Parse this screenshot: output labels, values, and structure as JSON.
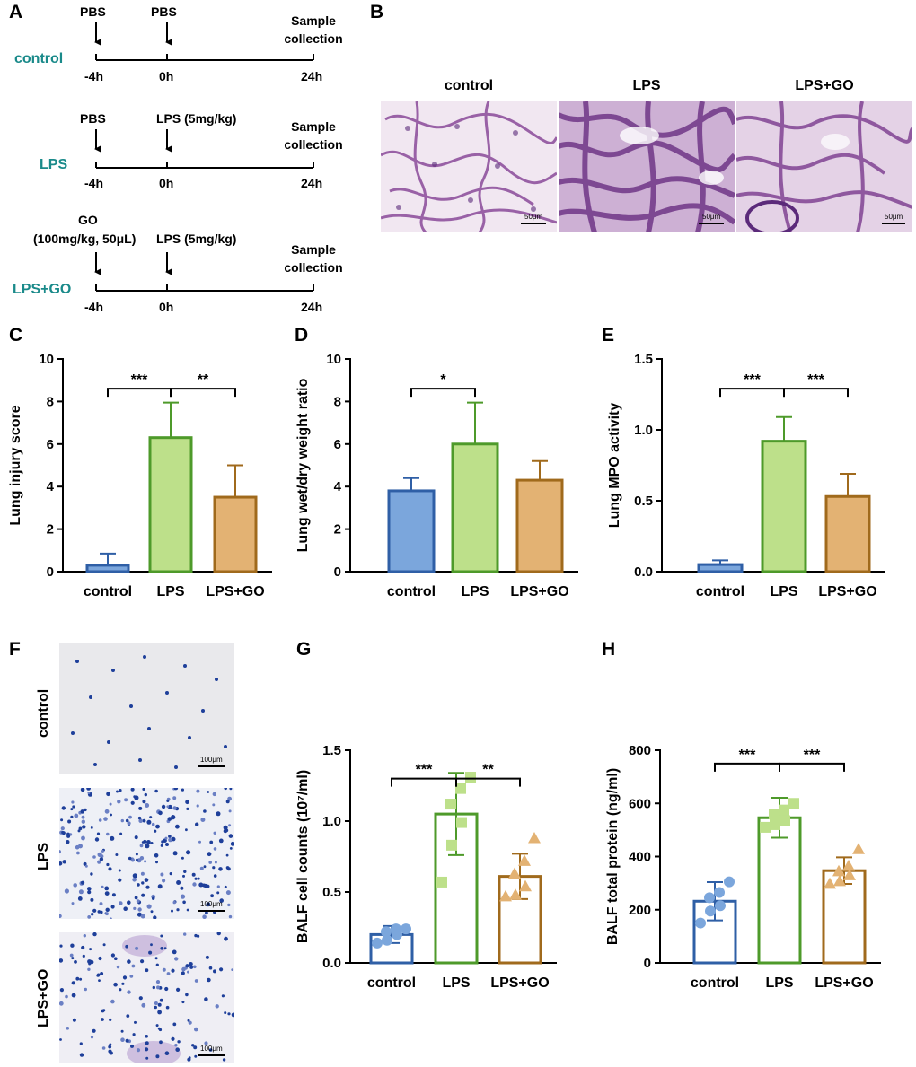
{
  "panel_letters": [
    "A",
    "B",
    "C",
    "D",
    "E",
    "F",
    "G",
    "H"
  ],
  "panelA": {
    "groups": [
      {
        "name": "control",
        "pre": "PBS",
        "treat": "PBS",
        "end_line1": "Sample",
        "end_line2": "collection"
      },
      {
        "name": "LPS",
        "pre": "PBS",
        "treat": "LPS (5mg/kg)",
        "end_line1": "Sample",
        "end_line2": "collection"
      },
      {
        "name": "LPS+GO",
        "pre_line1": "GO",
        "pre_line2": "(100mg/kg, 50μL)",
        "treat": "LPS (5mg/kg)",
        "end_line1": "Sample",
        "end_line2": "collection"
      }
    ],
    "ticks": [
      "-4h",
      "0h",
      "24h"
    ]
  },
  "panelB": {
    "labels": [
      "control",
      "LPS",
      "LPS+GO"
    ],
    "scalebar": "50μm"
  },
  "panelF": {
    "labels": [
      "control",
      "LPS",
      "LPS+GO"
    ],
    "scalebar": "100μm"
  },
  "colors": {
    "control_edge": "#2f5fa6",
    "control_fill": "#7ba6dc",
    "lps_edge": "#4e9a2a",
    "lps_fill": "#bde08a",
    "go_edge": "#a06a1c",
    "go_fill": "#e3b273"
  },
  "chart_data": [
    {
      "id": "C",
      "type": "bar",
      "categories": [
        "control",
        "LPS",
        "LPS+GO"
      ],
      "values": [
        0.3,
        6.3,
        3.5
      ],
      "errors": [
        0.55,
        1.65,
        1.5
      ],
      "ylabel": "Lung injury score",
      "ylim": [
        0,
        10
      ],
      "yticks": [
        "0",
        "2",
        "4",
        "6",
        "8",
        "10"
      ],
      "ytick_values": [
        0,
        2,
        4,
        6,
        8,
        10
      ],
      "sig": [
        {
          "from": 0,
          "to": 1,
          "label": "***",
          "y": 8.6
        },
        {
          "from": 1,
          "to": 2,
          "label": "**",
          "y": 8.6
        }
      ]
    },
    {
      "id": "D",
      "type": "bar",
      "categories": [
        "control",
        "LPS",
        "LPS+GO"
      ],
      "values": [
        3.8,
        6.0,
        4.3
      ],
      "errors": [
        0.6,
        1.95,
        0.9
      ],
      "ylabel": "Lung wet/dry weight ratio",
      "ylim": [
        0,
        10
      ],
      "yticks": [
        "0",
        "2",
        "4",
        "6",
        "8",
        "10"
      ],
      "ytick_values": [
        0,
        2,
        4,
        6,
        8,
        10
      ],
      "sig": [
        {
          "from": 0,
          "to": 1,
          "label": "*",
          "y": 8.6
        }
      ]
    },
    {
      "id": "E",
      "type": "bar",
      "categories": [
        "control",
        "LPS",
        "LPS+GO"
      ],
      "values": [
        0.05,
        0.92,
        0.53
      ],
      "errors": [
        0.03,
        0.17,
        0.16
      ],
      "ylabel": "Lung MPO activity",
      "ylim": [
        0,
        1.5
      ],
      "yticks": [
        "0.0",
        "0.5",
        "1.0",
        "1.5"
      ],
      "ytick_values": [
        0,
        0.5,
        1.0,
        1.5
      ],
      "sig": [
        {
          "from": 0,
          "to": 1,
          "label": "***",
          "y": 1.29
        },
        {
          "from": 1,
          "to": 2,
          "label": "***",
          "y": 1.29
        }
      ]
    },
    {
      "id": "G",
      "type": "bar",
      "categories": [
        "control",
        "LPS",
        "LPS+GO"
      ],
      "values": [
        0.2,
        1.05,
        0.61
      ],
      "errors": [
        0.06,
        0.29,
        0.16
      ],
      "points": [
        [
          0.14,
          0.16,
          0.2,
          0.22,
          0.24,
          0.24
        ],
        [
          0.57,
          0.83,
          0.99,
          1.12,
          1.23,
          1.31
        ],
        [
          0.47,
          0.48,
          0.54,
          0.63,
          0.72,
          0.88
        ]
      ],
      "ylabel": "BALF cell counts (10⁷/ml)",
      "ylim": [
        0,
        1.5
      ],
      "yticks": [
        "0.0",
        "0.5",
        "1.0",
        "1.5"
      ],
      "ytick_values": [
        0,
        0.5,
        1.0,
        1.5
      ],
      "sig": [
        {
          "from": 0,
          "to": 1,
          "label": "***",
          "y": 1.3
        },
        {
          "from": 1,
          "to": 2,
          "label": "**",
          "y": 1.3
        }
      ]
    },
    {
      "id": "H",
      "type": "bar",
      "categories": [
        "control",
        "LPS",
        "LPS+GO"
      ],
      "values": [
        232,
        546,
        347
      ],
      "errors": [
        72,
        75,
        50
      ],
      "points": [
        [
          150,
          195,
          215,
          245,
          265,
          305
        ],
        [
          510,
          520,
          535,
          560,
          575,
          600
        ],
        [
          298,
          308,
          330,
          345,
          365,
          428
        ]
      ],
      "ylabel": "BALF total protein (ng/ml)",
      "ylim": [
        0,
        800
      ],
      "yticks": [
        "0",
        "200",
        "400",
        "600",
        "800"
      ],
      "ytick_values": [
        0,
        200,
        400,
        600,
        800
      ],
      "sig": [
        {
          "from": 0,
          "to": 1,
          "label": "***",
          "y": 750
        },
        {
          "from": 1,
          "to": 2,
          "label": "***",
          "y": 750
        }
      ]
    }
  ]
}
